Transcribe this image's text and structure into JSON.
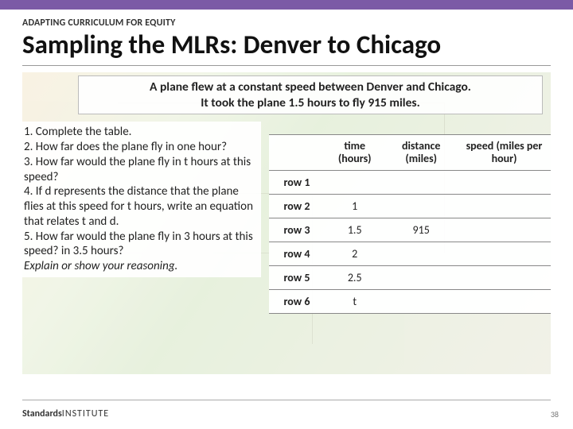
{
  "accent_bar_color": "#7b5aa6",
  "eyebrow": "ADAPTING CURRICULUM FOR EQUITY",
  "title": "Sampling the MLRs: Denver to Chicago",
  "prompt_line1": "A plane flew at a constant speed between Denver and Chicago.",
  "prompt_line2": "It took the plane 1.5 hours to fly 915 miles.",
  "questions": {
    "q1": "1. Complete the table.",
    "q2": "2. How far does the plane fly in one hour?",
    "q3": "3. How far would the plane fly in t hours at this speed?",
    "q4": "4. If d represents the distance that the plane flies at this speed for t hours, write an equation that relates t and d.",
    "q5": "5. How far would the plane fly in 3 hours at this speed? in 3.5 hours?",
    "reason": "Explain or show your reasoning."
  },
  "table": {
    "headers": {
      "blank": "",
      "time": "time (hours)",
      "distance": "distance (miles)",
      "speed": "speed (miles per hour)"
    },
    "rows": [
      {
        "label": "row 1",
        "time": "",
        "distance": "",
        "speed": ""
      },
      {
        "label": "row 2",
        "time": "1",
        "distance": "",
        "speed": ""
      },
      {
        "label": "row 3",
        "time": "1.5",
        "distance": "915",
        "speed": ""
      },
      {
        "label": "row 4",
        "time": "2",
        "distance": "",
        "speed": ""
      },
      {
        "label": "row 5",
        "time": "2.5",
        "distance": "",
        "speed": ""
      },
      {
        "label": "row 6",
        "time": "t",
        "distance": "",
        "speed": ""
      }
    ]
  },
  "footer": {
    "logo_bold": "Standards",
    "logo_light": "INSTITUTE",
    "page": "38"
  }
}
